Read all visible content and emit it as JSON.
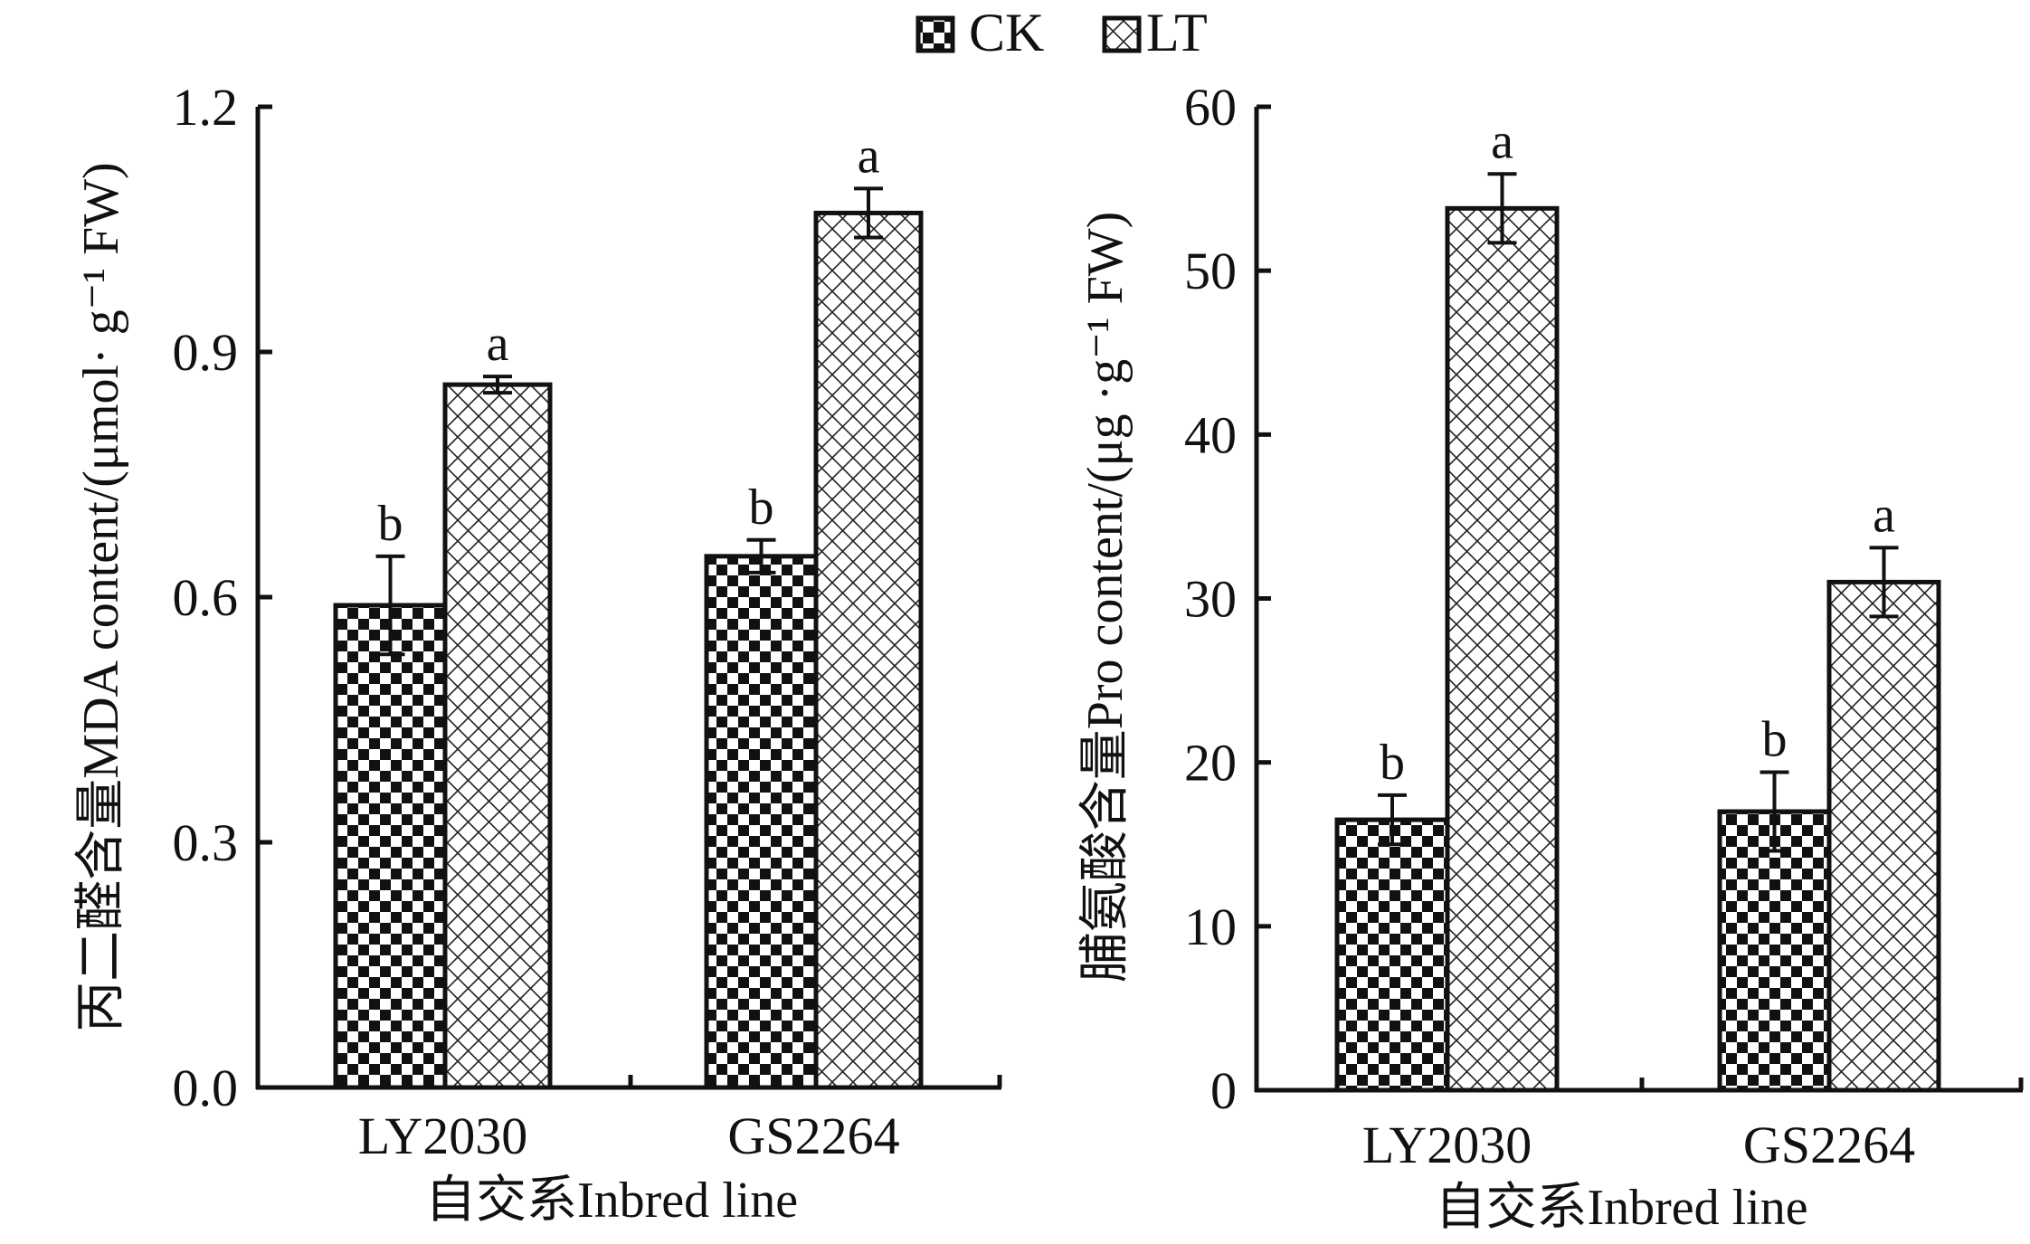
{
  "legend": {
    "items": [
      {
        "name": "CK",
        "pattern": "checker"
      },
      {
        "name": "LT",
        "pattern": "crosshatch"
      }
    ]
  },
  "chart_data": [
    {
      "type": "bar",
      "title": "",
      "ylabel": "丙二醛含量MDA content/(μmol· g⁻¹ FW)",
      "xlabel": "自交系Inbred line",
      "categories": [
        "LY2030",
        "GS2264"
      ],
      "ylim": [
        0,
        1.2
      ],
      "yticks": [
        "0.0",
        "0.3",
        "0.6",
        "0.9",
        "1.2"
      ],
      "ytick_values": [
        0,
        0.3,
        0.6,
        0.9,
        1.2
      ],
      "series": [
        {
          "name": "CK",
          "values": [
            0.59,
            0.65
          ],
          "errors": [
            0.06,
            0.02
          ],
          "labels": [
            "b",
            "b"
          ]
        },
        {
          "name": "LT",
          "values": [
            0.86,
            1.07
          ],
          "errors": [
            0.01,
            0.03
          ],
          "labels": [
            "a",
            "a"
          ]
        }
      ]
    },
    {
      "type": "bar",
      "title": "",
      "ylabel": "脯氨酸含量Pro content/(μg ·g⁻¹ FW)",
      "xlabel": "自交系Inbred line",
      "categories": [
        "LY2030",
        "GS2264"
      ],
      "ylim": [
        0,
        60
      ],
      "yticks": [
        "0",
        "10",
        "20",
        "30",
        "40",
        "50",
        "60"
      ],
      "ytick_values": [
        0,
        10,
        20,
        30,
        40,
        50,
        60
      ],
      "series": [
        {
          "name": "CK",
          "values": [
            16.5,
            17.0
          ],
          "errors": [
            1.5,
            2.4
          ],
          "labels": [
            "b",
            "b"
          ]
        },
        {
          "name": "LT",
          "values": [
            53.8,
            31.0
          ],
          "errors": [
            2.1,
            2.1
          ],
          "labels": [
            "a",
            "a"
          ]
        }
      ]
    }
  ]
}
